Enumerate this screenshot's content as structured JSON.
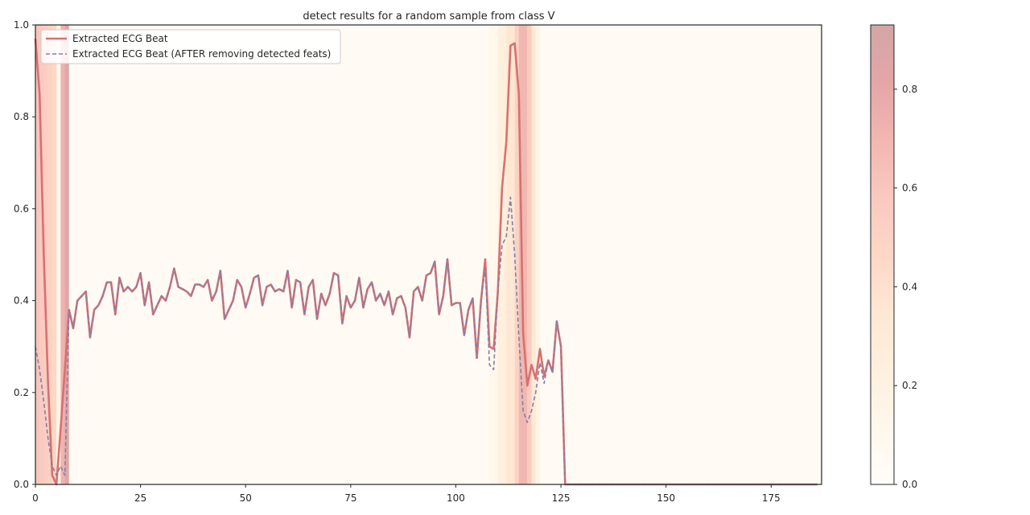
{
  "chart_data": {
    "type": "line",
    "title": "detect results for a random sample from class V",
    "xlabel": "",
    "ylabel": "",
    "xlim": [
      0,
      187
    ],
    "ylim": [
      0,
      1.0
    ],
    "xticks": [
      0,
      25,
      50,
      75,
      100,
      125,
      150,
      175
    ],
    "yticks": [
      0.0,
      0.2,
      0.4,
      0.6,
      0.8,
      1.0
    ],
    "grid": false,
    "legend_position": "upper-left",
    "series": [
      {
        "name": "Extracted ECG Beat",
        "color": "#d9706f",
        "style": "solid",
        "x": [
          0,
          1,
          2,
          3,
          4,
          5,
          6,
          7,
          8,
          9,
          10,
          11,
          12,
          13,
          14,
          15,
          16,
          17,
          18,
          19,
          20,
          21,
          22,
          23,
          24,
          25,
          26,
          27,
          28,
          29,
          30,
          31,
          32,
          33,
          34,
          35,
          36,
          37,
          38,
          39,
          40,
          41,
          42,
          43,
          44,
          45,
          46,
          47,
          48,
          49,
          50,
          51,
          52,
          53,
          54,
          55,
          56,
          57,
          58,
          59,
          60,
          61,
          62,
          63,
          64,
          65,
          66,
          67,
          68,
          69,
          70,
          71,
          72,
          73,
          74,
          75,
          76,
          77,
          78,
          79,
          80,
          81,
          82,
          83,
          84,
          85,
          86,
          87,
          88,
          89,
          90,
          91,
          92,
          93,
          94,
          95,
          96,
          97,
          98,
          99,
          100,
          101,
          102,
          103,
          104,
          105,
          106,
          107,
          108,
          109,
          110,
          111,
          112,
          113,
          114,
          115,
          116,
          117,
          118,
          119,
          120,
          121,
          122,
          123,
          124,
          125,
          126,
          127,
          128,
          130,
          140,
          150,
          160,
          170,
          180,
          186
        ],
        "y": [
          0.97,
          0.85,
          0.5,
          0.22,
          0.02,
          0.0,
          0.12,
          0.25,
          0.38,
          0.34,
          0.4,
          0.41,
          0.42,
          0.32,
          0.38,
          0.39,
          0.41,
          0.44,
          0.44,
          0.37,
          0.45,
          0.42,
          0.43,
          0.42,
          0.43,
          0.46,
          0.39,
          0.44,
          0.37,
          0.39,
          0.41,
          0.4,
          0.43,
          0.47,
          0.43,
          0.425,
          0.42,
          0.41,
          0.435,
          0.435,
          0.43,
          0.445,
          0.4,
          0.42,
          0.465,
          0.36,
          0.38,
          0.4,
          0.445,
          0.43,
          0.385,
          0.415,
          0.45,
          0.455,
          0.39,
          0.43,
          0.435,
          0.42,
          0.425,
          0.42,
          0.465,
          0.385,
          0.445,
          0.44,
          0.37,
          0.43,
          0.445,
          0.36,
          0.415,
          0.39,
          0.415,
          0.46,
          0.455,
          0.35,
          0.41,
          0.385,
          0.4,
          0.45,
          0.385,
          0.425,
          0.44,
          0.4,
          0.415,
          0.39,
          0.42,
          0.37,
          0.405,
          0.41,
          0.385,
          0.32,
          0.42,
          0.43,
          0.4,
          0.455,
          0.46,
          0.485,
          0.37,
          0.41,
          0.49,
          0.39,
          0.395,
          0.395,
          0.325,
          0.38,
          0.405,
          0.275,
          0.4,
          0.49,
          0.3,
          0.295,
          0.42,
          0.645,
          0.745,
          0.955,
          0.96,
          0.85,
          0.33,
          0.215,
          0.26,
          0.23,
          0.295,
          0.235,
          0.27,
          0.245,
          0.355,
          0.3,
          0.0,
          0.0,
          0.0,
          0.0,
          0.0,
          0.0,
          0.0,
          0.0,
          0.0,
          0.0
        ]
      },
      {
        "name": "Extracted ECG Beat (AFTER removing detected feats)",
        "color": "#8080aa",
        "style": "dashed",
        "x": [
          0,
          1,
          2,
          3,
          4,
          5,
          6,
          7,
          8,
          9,
          10,
          11,
          12,
          13,
          14,
          15,
          16,
          17,
          18,
          19,
          20,
          21,
          22,
          23,
          24,
          25,
          26,
          27,
          28,
          29,
          30,
          31,
          32,
          33,
          34,
          35,
          36,
          37,
          38,
          39,
          40,
          41,
          42,
          43,
          44,
          45,
          46,
          47,
          48,
          49,
          50,
          51,
          52,
          53,
          54,
          55,
          56,
          57,
          58,
          59,
          60,
          61,
          62,
          63,
          64,
          65,
          66,
          67,
          68,
          69,
          70,
          71,
          72,
          73,
          74,
          75,
          76,
          77,
          78,
          79,
          80,
          81,
          82,
          83,
          84,
          85,
          86,
          87,
          88,
          89,
          90,
          91,
          92,
          93,
          94,
          95,
          96,
          97,
          98,
          99,
          100,
          101,
          102,
          103,
          104,
          105,
          106,
          107,
          108,
          109,
          110,
          111,
          112,
          113,
          114,
          115,
          116,
          117,
          118,
          119,
          120,
          121,
          122,
          123,
          124,
          125,
          126,
          127,
          128,
          130,
          140,
          150,
          160,
          170,
          180,
          186
        ],
        "y": [
          0.3,
          0.25,
          0.18,
          0.1,
          0.04,
          0.02,
          0.04,
          0.02,
          0.38,
          0.34,
          0.4,
          0.41,
          0.42,
          0.32,
          0.38,
          0.39,
          0.41,
          0.44,
          0.44,
          0.37,
          0.45,
          0.42,
          0.43,
          0.42,
          0.43,
          0.46,
          0.39,
          0.44,
          0.37,
          0.39,
          0.41,
          0.4,
          0.43,
          0.47,
          0.43,
          0.425,
          0.42,
          0.41,
          0.435,
          0.435,
          0.43,
          0.445,
          0.4,
          0.42,
          0.465,
          0.36,
          0.38,
          0.4,
          0.445,
          0.43,
          0.385,
          0.415,
          0.45,
          0.455,
          0.39,
          0.43,
          0.435,
          0.42,
          0.425,
          0.42,
          0.465,
          0.385,
          0.445,
          0.44,
          0.37,
          0.43,
          0.445,
          0.36,
          0.415,
          0.39,
          0.415,
          0.46,
          0.455,
          0.35,
          0.41,
          0.385,
          0.4,
          0.45,
          0.385,
          0.425,
          0.44,
          0.4,
          0.415,
          0.39,
          0.42,
          0.37,
          0.405,
          0.41,
          0.385,
          0.32,
          0.42,
          0.43,
          0.4,
          0.455,
          0.46,
          0.485,
          0.37,
          0.41,
          0.49,
          0.39,
          0.395,
          0.395,
          0.325,
          0.38,
          0.405,
          0.275,
          0.4,
          0.47,
          0.26,
          0.25,
          0.42,
          0.52,
          0.54,
          0.625,
          0.5,
          0.32,
          0.16,
          0.135,
          0.16,
          0.2,
          0.265,
          0.22,
          0.27,
          0.245,
          0.355,
          0.3,
          0.0,
          0.0,
          0.0,
          0.0,
          0.0,
          0.0,
          0.0,
          0.0,
          0.0,
          0.0
        ]
      }
    ],
    "heatmap_background": {
      "colormap": "OrRd",
      "alpha": 0.35,
      "bands": [
        {
          "x0": 0,
          "x1": 1,
          "value": 0.65
        },
        {
          "x0": 1,
          "x1": 2,
          "value": 0.62
        },
        {
          "x0": 2,
          "x1": 3,
          "value": 0.58
        },
        {
          "x0": 3,
          "x1": 4,
          "value": 0.55
        },
        {
          "x0": 4,
          "x1": 5,
          "value": 0.5
        },
        {
          "x0": 5,
          "x1": 6,
          "value": 0.15
        },
        {
          "x0": 6,
          "x1": 7,
          "value": 0.78
        },
        {
          "x0": 7,
          "x1": 8,
          "value": 0.9
        },
        {
          "x0": 8,
          "x1": 108,
          "value": 0.04
        },
        {
          "x0": 108,
          "x1": 110,
          "value": 0.12
        },
        {
          "x0": 110,
          "x1": 112,
          "value": 0.25
        },
        {
          "x0": 112,
          "x1": 114,
          "value": 0.38
        },
        {
          "x0": 114,
          "x1": 115,
          "value": 0.55
        },
        {
          "x0": 115,
          "x1": 117,
          "value": 0.75
        },
        {
          "x0": 117,
          "x1": 118,
          "value": 0.6
        },
        {
          "x0": 118,
          "x1": 119,
          "value": 0.35
        },
        {
          "x0": 119,
          "x1": 120,
          "value": 0.2
        },
        {
          "x0": 120,
          "x1": 187,
          "value": 0.04
        }
      ]
    },
    "colorbar": {
      "ticks": [
        0.0,
        0.2,
        0.4,
        0.6,
        0.8
      ],
      "range": [
        0.0,
        0.93
      ]
    }
  }
}
